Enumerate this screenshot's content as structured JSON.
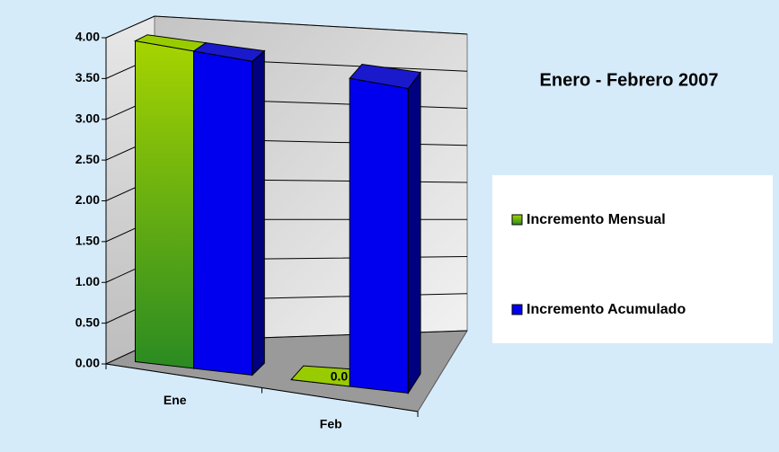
{
  "chart_data": {
    "type": "bar3d",
    "title": "Enero - Febrero 2007",
    "categories": [
      "Ene",
      "Feb"
    ],
    "series": [
      {
        "name": "Incremento Mensual",
        "color": "#99cc00",
        "values": [
          3.95,
          0
        ],
        "value_labels": [
          null,
          "0.0"
        ]
      },
      {
        "name": "Incremento Acumulado",
        "color": "#0000ee",
        "values": [
          3.95,
          3.95
        ]
      }
    ],
    "ylim": [
      0,
      4
    ],
    "yticks": [
      {
        "value": 0,
        "label": "0.00"
      },
      {
        "value": 0.5,
        "label": "0.50"
      },
      {
        "value": 1,
        "label": "1.00"
      },
      {
        "value": 1.5,
        "label": "1.50"
      },
      {
        "value": 2,
        "label": "2.00"
      },
      {
        "value": 2.5,
        "label": "2.50"
      },
      {
        "value": 3,
        "label": "3.00"
      },
      {
        "value": 3.5,
        "label": "3.50"
      },
      {
        "value": 4,
        "label": "4.00"
      }
    ],
    "grid": true,
    "legend": "right"
  }
}
